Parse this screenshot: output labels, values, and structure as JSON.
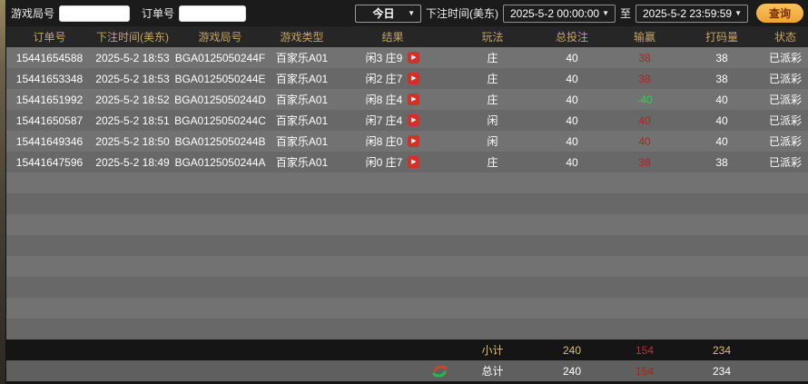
{
  "topbar": {
    "game_round_label": "游戏局号",
    "order_label": "订单号",
    "period_select": "今日",
    "bet_time_label": "下注时间(美东)",
    "start_time": "2025-5-2 00:00:00",
    "to_label": "至",
    "end_time": "2025-5-2 23:59:59",
    "query_button": "查询"
  },
  "table": {
    "headers": [
      "订单号",
      "下注时间(美东)",
      "游戏局号",
      "游戏类型",
      "结果",
      "玩法",
      "总投注",
      "输赢",
      "打码量",
      "状态"
    ],
    "rows": [
      {
        "order": "15441654588",
        "time": "2025-5-2 18:53",
        "round": "BGA0125050244F",
        "type": "百家乐A01",
        "result": "闲3 庄9",
        "play": "庄",
        "bet": "40",
        "win": "38",
        "win_color": "red",
        "turnover": "38",
        "status": "已派彩"
      },
      {
        "order": "15441653348",
        "time": "2025-5-2 18:53",
        "round": "BGA0125050244E",
        "type": "百家乐A01",
        "result": "闲2 庄7",
        "play": "庄",
        "bet": "40",
        "win": "38",
        "win_color": "red",
        "turnover": "38",
        "status": "已派彩"
      },
      {
        "order": "15441651992",
        "time": "2025-5-2 18:52",
        "round": "BGA0125050244D",
        "type": "百家乐A01",
        "result": "闲8 庄4",
        "play": "庄",
        "bet": "40",
        "win": "-40",
        "win_color": "green",
        "turnover": "40",
        "status": "已派彩"
      },
      {
        "order": "15441650587",
        "time": "2025-5-2 18:51",
        "round": "BGA0125050244C",
        "type": "百家乐A01",
        "result": "闲7 庄4",
        "play": "闲",
        "bet": "40",
        "win": "40",
        "win_color": "red",
        "turnover": "40",
        "status": "已派彩"
      },
      {
        "order": "15441649346",
        "time": "2025-5-2 18:50",
        "round": "BGA0125050244B",
        "type": "百家乐A01",
        "result": "闲8 庄0",
        "play": "闲",
        "bet": "40",
        "win": "40",
        "win_color": "red",
        "turnover": "40",
        "status": "已派彩"
      },
      {
        "order": "15441647596",
        "time": "2025-5-2 18:49",
        "round": "BGA0125050244A",
        "type": "百家乐A01",
        "result": "闲0 庄7",
        "play": "庄",
        "bet": "40",
        "win": "38",
        "win_color": "red",
        "turnover": "38",
        "status": "已派彩"
      }
    ],
    "empty_row_count": 8
  },
  "summary": {
    "subtotal_label": "小计",
    "subtotal_bet": "240",
    "subtotal_win": "154",
    "subtotal_turnover": "234",
    "total_label": "总计",
    "total_bet": "240",
    "total_win": "154",
    "total_turnover": "234"
  },
  "colors": {
    "header_text": "#c4a466",
    "win_red": "#ab2623",
    "loss_green": "#1fdc4b",
    "query_button_gold": "#efa431",
    "summary_gold": "#e2bd6e"
  }
}
